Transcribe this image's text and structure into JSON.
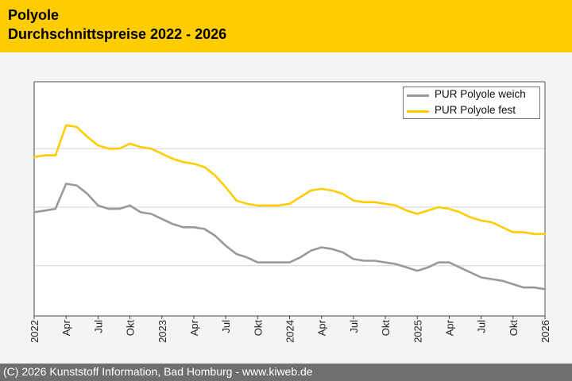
{
  "header": {
    "title": "Polyole",
    "subtitle": "Durchschnittspreise 2022 - 2026"
  },
  "footer": {
    "text": "(C) 2026 Kunststoff Information, Bad Homburg - www.kiweb.de"
  },
  "chart_data": {
    "type": "line",
    "title": "Polyole",
    "subtitle": "Durchschnittspreise 2022 - 2026",
    "xlabel": "",
    "ylabel": "",
    "x_ticks": [
      "2022",
      "Apr",
      "Jul",
      "Okt",
      "2023",
      "Apr",
      "Jul",
      "Okt",
      "2024",
      "Apr",
      "Jul",
      "Okt",
      "2025",
      "Apr",
      "Jul",
      "Okt",
      "2026"
    ],
    "x_range": [
      "2022-01",
      "2026-01"
    ],
    "y_ticks_labeled": false,
    "grid": "horizontal",
    "legend_position": "top-right",
    "series": [
      {
        "name": "PUR Polyole weich",
        "color": "#999999",
        "x": [
          "2022-01",
          "2022-02",
          "2022-03",
          "2022-04",
          "2022-05",
          "2022-06",
          "2022-07",
          "2022-08",
          "2022-09",
          "2022-10",
          "2022-11",
          "2022-12",
          "2023-01",
          "2023-02",
          "2023-03",
          "2023-04",
          "2023-05",
          "2023-06",
          "2023-07",
          "2023-08",
          "2023-09",
          "2023-10",
          "2023-11",
          "2023-12",
          "2024-01",
          "2024-02",
          "2024-03",
          "2024-04",
          "2024-05",
          "2024-06",
          "2024-07",
          "2024-08",
          "2024-09",
          "2024-10",
          "2024-11",
          "2024-12",
          "2025-01",
          "2025-02",
          "2025-03",
          "2025-04",
          "2025-05",
          "2025-06",
          "2025-07",
          "2025-08",
          "2025-09",
          "2025-10",
          "2025-11",
          "2025-12",
          "2026-01"
        ],
        "values": [
          1.97,
          1.98,
          1.99,
          2.14,
          2.13,
          2.08,
          2.01,
          1.99,
          1.99,
          2.01,
          1.97,
          1.96,
          1.93,
          1.9,
          1.88,
          1.88,
          1.87,
          1.83,
          1.77,
          1.72,
          1.7,
          1.67,
          1.67,
          1.67,
          1.67,
          1.7,
          1.74,
          1.76,
          1.75,
          1.73,
          1.69,
          1.68,
          1.68,
          1.67,
          1.66,
          1.64,
          1.62,
          1.64,
          1.67,
          1.67,
          1.64,
          1.61,
          1.58,
          1.57,
          1.56,
          1.54,
          1.52,
          1.52,
          1.51
        ]
      },
      {
        "name": "PUR Polyole fest",
        "color": "#ffcc00",
        "x": [
          "2022-01",
          "2022-02",
          "2022-03",
          "2022-04",
          "2022-05",
          "2022-06",
          "2022-07",
          "2022-08",
          "2022-09",
          "2022-10",
          "2022-11",
          "2022-12",
          "2023-01",
          "2023-02",
          "2023-03",
          "2023-04",
          "2023-05",
          "2023-06",
          "2023-07",
          "2023-08",
          "2023-09",
          "2023-10",
          "2023-11",
          "2023-12",
          "2024-01",
          "2024-02",
          "2024-03",
          "2024-04",
          "2024-05",
          "2024-06",
          "2024-07",
          "2024-08",
          "2024-09",
          "2024-10",
          "2024-11",
          "2024-12",
          "2025-01",
          "2025-02",
          "2025-03",
          "2025-04",
          "2025-05",
          "2025-06",
          "2025-07",
          "2025-08",
          "2025-09",
          "2025-10",
          "2025-11",
          "2025-12",
          "2026-01"
        ],
        "values": [
          2.3,
          2.31,
          2.31,
          2.49,
          2.48,
          2.42,
          2.37,
          2.35,
          2.35,
          2.38,
          2.36,
          2.35,
          2.32,
          2.29,
          2.27,
          2.26,
          2.24,
          2.19,
          2.12,
          2.04,
          2.02,
          2.01,
          2.01,
          2.01,
          2.02,
          2.06,
          2.1,
          2.11,
          2.1,
          2.08,
          2.04,
          2.03,
          2.03,
          2.02,
          2.01,
          1.98,
          1.96,
          1.98,
          2.0,
          1.99,
          1.97,
          1.94,
          1.92,
          1.91,
          1.88,
          1.85,
          1.85,
          1.84,
          1.84
        ]
      }
    ],
    "ylim": [
      1.35,
      2.75
    ]
  }
}
